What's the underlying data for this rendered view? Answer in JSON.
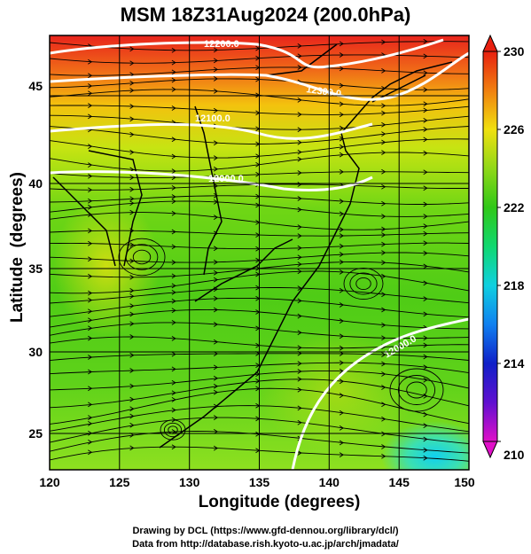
{
  "title": "MSM 18Z31Aug2024 (200.0hPa)",
  "chart_data": {
    "type": "heatmap",
    "title": "MSM 18Z31Aug2024 (200.0hPa)",
    "xlabel": "Longitude (degrees)",
    "ylabel": "Latitude  (degrees)",
    "xlim": [
      120,
      150
    ],
    "ylim": [
      22.5,
      47.5
    ],
    "x_ticks": [
      "120",
      "125",
      "130",
      "135",
      "140",
      "145",
      "150"
    ],
    "y_ticks": [
      "25",
      "30",
      "35",
      "40",
      "45"
    ],
    "colorbar": {
      "range": [
        210,
        230
      ],
      "ticks": [
        "210",
        "214",
        "218",
        "222",
        "226",
        "230"
      ]
    },
    "contour_labels": [
      "12200.0",
      "12300.0",
      "12100.0",
      "12000.0",
      "12000.0"
    ],
    "grid": true
  },
  "credits": {
    "line1": "Drawing by DCL (https://www.gfd-dennou.org/library/dcl/)",
    "line2": "Data from http://database.rish.kyoto-u.ac.jp/arch/jmadata/"
  }
}
